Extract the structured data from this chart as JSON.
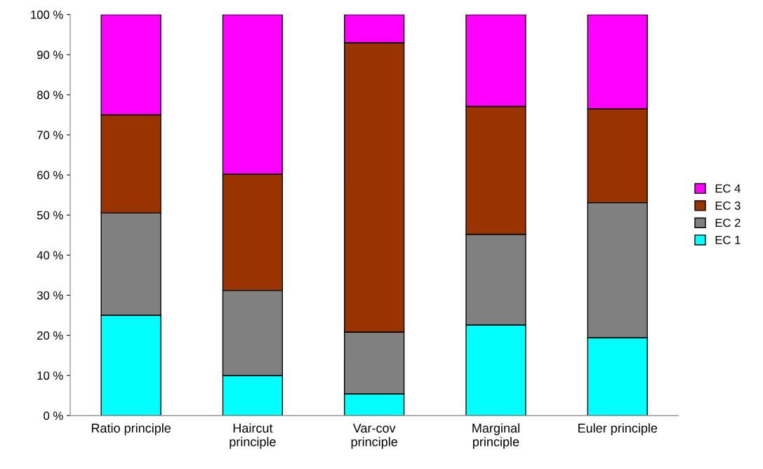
{
  "chart_data": {
    "type": "bar",
    "stacked": true,
    "categories": [
      "Ratio principle",
      "Haircut\nprinciple",
      "Var-cov\nprinciple",
      "Marginal\nprinciple",
      "Euler principle"
    ],
    "series": [
      {
        "name": "EC 1",
        "color": "#00ffff",
        "values": [
          25.0,
          10.0,
          5.4,
          22.6,
          19.4
        ]
      },
      {
        "name": "EC 2",
        "color": "#808080",
        "values": [
          25.5,
          21.2,
          15.4,
          22.6,
          33.7
        ]
      },
      {
        "name": "EC 3",
        "color": "#993300",
        "values": [
          24.5,
          29.0,
          72.2,
          31.9,
          23.4
        ]
      },
      {
        "name": "EC 4",
        "color": "#ff00ff",
        "values": [
          25.0,
          39.8,
          7.0,
          22.9,
          23.5
        ]
      }
    ],
    "ylim": [
      0,
      100
    ],
    "yticks": [
      {
        "value": 0,
        "label": "0 %"
      },
      {
        "value": 10,
        "label": "10 %"
      },
      {
        "value": 20,
        "label": "20 %"
      },
      {
        "value": 30,
        "label": "30 %"
      },
      {
        "value": 40,
        "label": "40 %"
      },
      {
        "value": 50,
        "label": "50 %"
      },
      {
        "value": 60,
        "label": "60 %"
      },
      {
        "value": 70,
        "label": "70 %"
      },
      {
        "value": 80,
        "label": "80 %"
      },
      {
        "value": 90,
        "label": "90 %"
      },
      {
        "value": 100,
        "label": "100 %"
      }
    ],
    "grid": false,
    "legend": "right"
  }
}
